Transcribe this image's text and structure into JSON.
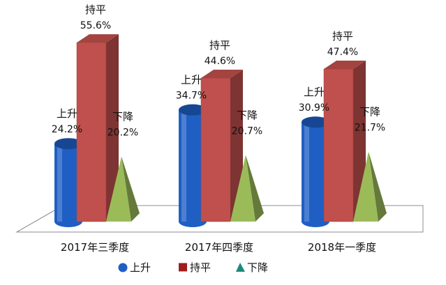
{
  "chart_data": {
    "type": "bar",
    "categories": [
      "2017年三季度",
      "2017年四季度",
      "2018年一季度"
    ],
    "series": [
      {
        "name": "上升",
        "values": [
          24.2,
          34.7,
          30.9
        ],
        "value_labels": [
          "24.2%",
          "34.7%",
          "30.9%"
        ],
        "color": "#1f5fc4",
        "shape": "cylinder"
      },
      {
        "name": "持平",
        "values": [
          55.6,
          44.6,
          47.4
        ],
        "value_labels": [
          "55.6%",
          "44.6%",
          "47.4%"
        ],
        "color": "#c0504d",
        "shape": "box"
      },
      {
        "name": "下降",
        "values": [
          20.2,
          20.7,
          21.7
        ],
        "value_labels": [
          "20.2%",
          "20.7%",
          "21.7%"
        ],
        "color": "#9bbb59",
        "shape": "pyramid"
      }
    ],
    "unit": "%",
    "legend_position": "bottom",
    "grid": false,
    "ylim": [
      0,
      60
    ]
  }
}
